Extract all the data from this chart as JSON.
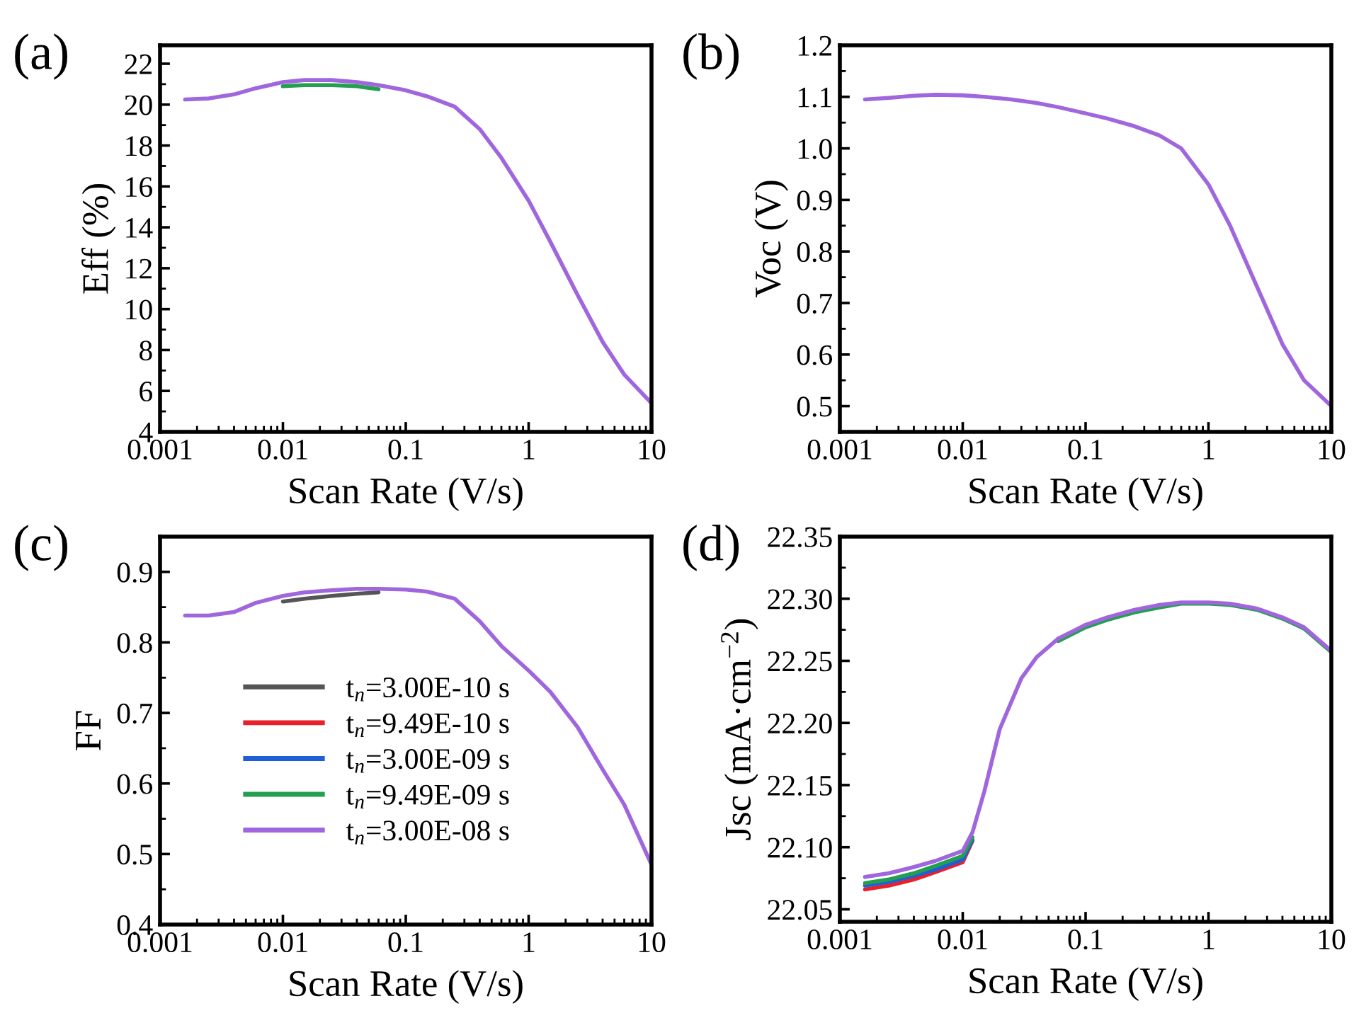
{
  "chart_data": [
    {
      "type": "line",
      "title": "(a)",
      "xlabel": "Scan Rate (V/s)",
      "ylabel": "Eff (%)",
      "log": "x",
      "xlim": [
        0.001,
        10
      ],
      "xticks": [
        {
          "value": 0.001,
          "label": "0.001"
        },
        {
          "value": 0.01,
          "label": "0.01"
        },
        {
          "value": 0.1,
          "label": "0.1"
        },
        {
          "value": 1,
          "label": "1"
        },
        {
          "value": 10,
          "label": "10"
        }
      ],
      "ylim": [
        4,
        22.9
      ],
      "yticks": [
        4,
        6,
        8,
        10,
        12,
        14,
        16,
        18,
        20,
        22
      ],
      "grid": false,
      "legend": false,
      "marker": "none",
      "line_style": "solid",
      "x": [
        0.0016,
        0.0025,
        0.004,
        0.006,
        0.01,
        0.015,
        0.025,
        0.04,
        0.06,
        0.1,
        0.15,
        0.25,
        0.4,
        0.6,
        1,
        1.5,
        2.5,
        4,
        6,
        10
      ],
      "series": [
        {
          "color": "#22a050",
          "values": [
            null,
            null,
            null,
            null,
            20.9,
            20.95,
            20.95,
            20.9,
            20.75,
            null,
            null,
            null,
            null,
            null,
            null,
            null,
            null,
            null,
            null,
            null
          ]
        },
        {
          "color": "#a066dd",
          "values": [
            20.25,
            20.3,
            20.5,
            20.8,
            21.1,
            21.2,
            21.2,
            21.1,
            20.95,
            20.7,
            20.4,
            19.9,
            18.8,
            17.4,
            15.3,
            13.3,
            10.7,
            8.4,
            6.8,
            5.4
          ]
        }
      ]
    },
    {
      "type": "line",
      "title": "(b)",
      "xlabel": "Scan Rate (V/s)",
      "ylabel": "Voc (V)",
      "log": "x",
      "xlim": [
        0.001,
        10
      ],
      "xticks": [
        {
          "value": 0.001,
          "label": "0.001"
        },
        {
          "value": 0.01,
          "label": "0.01"
        },
        {
          "value": 0.1,
          "label": "0.1"
        },
        {
          "value": 1,
          "label": "1"
        },
        {
          "value": 10,
          "label": "10"
        }
      ],
      "ylim": [
        0.45,
        1.2
      ],
      "yticks": [
        0.5,
        0.6,
        0.7,
        0.8,
        0.9,
        {
          "value": 1.0,
          "label": "1.0"
        },
        1.1,
        1.2
      ],
      "grid": false,
      "legend": false,
      "marker": "none",
      "line_style": "solid",
      "x": [
        0.0016,
        0.0025,
        0.004,
        0.006,
        0.01,
        0.015,
        0.025,
        0.04,
        0.06,
        0.1,
        0.15,
        0.25,
        0.4,
        0.6,
        1,
        1.5,
        2.5,
        4,
        6,
        10
      ],
      "series": [
        {
          "color": "#a066dd",
          "values": [
            1.095,
            1.098,
            1.102,
            1.104,
            1.103,
            1.1,
            1.095,
            1.088,
            1.08,
            1.068,
            1.058,
            1.043,
            1.025,
            1.0,
            0.93,
            0.85,
            0.73,
            0.62,
            0.55,
            0.5
          ]
        }
      ]
    },
    {
      "type": "line",
      "title": "(c)",
      "xlabel": "Scan Rate (V/s)",
      "ylabel": "FF",
      "log": "x",
      "xlim": [
        0.001,
        10
      ],
      "xticks": [
        {
          "value": 0.001,
          "label": "0.001"
        },
        {
          "value": 0.01,
          "label": "0.01"
        },
        {
          "value": 0.1,
          "label": "0.1"
        },
        {
          "value": 1,
          "label": "1"
        },
        {
          "value": 10,
          "label": "10"
        }
      ],
      "ylim": [
        0.4,
        0.95
      ],
      "yticks": [
        0.4,
        0.5,
        0.6,
        0.7,
        0.8,
        0.9
      ],
      "grid": false,
      "legend": "center left",
      "marker": "none",
      "line_style": "solid",
      "x": [
        0.0016,
        0.0025,
        0.004,
        0.006,
        0.01,
        0.015,
        0.025,
        0.04,
        0.06,
        0.1,
        0.15,
        0.25,
        0.4,
        0.6,
        1,
        1.5,
        2.5,
        4,
        6,
        10
      ],
      "series": [
        {
          "name": "t$_{n}$=3.00E-10 s",
          "color": "#555555",
          "values": [
            null,
            null,
            null,
            null,
            0.858,
            0.862,
            0.866,
            0.869,
            0.871,
            null,
            null,
            null,
            null,
            null,
            null,
            null,
            null,
            null,
            null,
            null
          ]
        },
        {
          "name": "t$_{n}$=9.49E-10 s",
          "color": "#e8202a",
          "values": [
            null,
            null,
            null,
            null,
            null,
            null,
            null,
            null,
            null,
            null,
            null,
            null,
            null,
            null,
            null,
            null,
            null,
            null,
            null,
            null
          ]
        },
        {
          "name": "t$_{n}$=3.00E-09 s",
          "color": "#1f5fd6",
          "values": [
            null,
            null,
            null,
            null,
            null,
            null,
            null,
            null,
            null,
            null,
            null,
            null,
            null,
            null,
            null,
            null,
            null,
            null,
            null,
            null
          ]
        },
        {
          "name": "t$_{n}$=9.49E-09 s",
          "color": "#22a050",
          "values": [
            null,
            null,
            null,
            null,
            null,
            null,
            null,
            null,
            null,
            null,
            null,
            null,
            null,
            null,
            null,
            null,
            null,
            null,
            null,
            null
          ]
        },
        {
          "name": "t$_{n}$=3.00E-08 s",
          "color": "#a066dd",
          "values": [
            0.838,
            0.838,
            0.843,
            0.856,
            0.866,
            0.871,
            0.874,
            0.876,
            0.876,
            0.875,
            0.872,
            0.862,
            0.83,
            0.795,
            0.76,
            0.73,
            0.68,
            0.62,
            0.57,
            0.485
          ]
        }
      ]
    },
    {
      "type": "line",
      "title": "(d)",
      "xlabel": "Scan Rate (V/s)",
      "ylabel": "Jsc (mA·cm$^{−2}$)",
      "log": "x",
      "xlim": [
        0.001,
        10
      ],
      "xticks": [
        {
          "value": 0.001,
          "label": "0.001"
        },
        {
          "value": 0.01,
          "label": "0.01"
        },
        {
          "value": 0.1,
          "label": "0.1"
        },
        {
          "value": 1,
          "label": "1"
        },
        {
          "value": 10,
          "label": "10"
        }
      ],
      "ylim": [
        22.04,
        22.35
      ],
      "yticks": [
        {
          "value": 22.05,
          "label": "22.05"
        },
        {
          "value": 22.1,
          "label": "22.10"
        },
        {
          "value": 22.15,
          "label": "22.15"
        },
        {
          "value": 22.2,
          "label": "22.20"
        },
        {
          "value": 22.25,
          "label": "22.25"
        },
        {
          "value": 22.3,
          "label": "22.30"
        },
        {
          "value": 22.35,
          "label": "22.35"
        }
      ],
      "grid": false,
      "legend": false,
      "marker": "none",
      "line_style": "solid",
      "x": [
        0.0016,
        0.0025,
        0.004,
        0.006,
        0.01,
        0.012,
        0.015,
        0.02,
        0.03,
        0.04,
        0.06,
        0.1,
        0.15,
        0.25,
        0.4,
        0.6,
        1,
        1.5,
        2.5,
        4,
        6,
        10
      ],
      "series": [
        {
          "color": "#e8202a",
          "values": [
            22.066,
            22.069,
            22.074,
            22.08,
            22.088,
            22.105,
            null,
            null,
            null,
            null,
            null,
            null,
            null,
            null,
            null,
            null,
            null,
            null,
            null,
            null,
            null,
            null
          ]
        },
        {
          "color": "#1f5fd6",
          "values": [
            22.069,
            22.072,
            22.077,
            22.082,
            22.09,
            22.106,
            null,
            null,
            null,
            null,
            null,
            null,
            null,
            null,
            null,
            null,
            null,
            null,
            null,
            null,
            null,
            null
          ]
        },
        {
          "color": "#22a050",
          "values": [
            22.071,
            22.074,
            22.079,
            22.085,
            22.093,
            22.108,
            null,
            null,
            null,
            null,
            22.266,
            22.277,
            22.283,
            22.289,
            22.293,
            22.296,
            22.296,
            22.295,
            22.291,
            22.284,
            22.276,
            22.257
          ]
        },
        {
          "color": "#a066dd",
          "values": [
            22.076,
            22.079,
            22.084,
            22.089,
            22.097,
            22.112,
            22.145,
            22.195,
            22.236,
            22.253,
            22.268,
            22.279,
            22.285,
            22.291,
            22.295,
            22.297,
            22.297,
            22.296,
            22.292,
            22.285,
            22.277,
            22.258
          ]
        }
      ]
    }
  ]
}
